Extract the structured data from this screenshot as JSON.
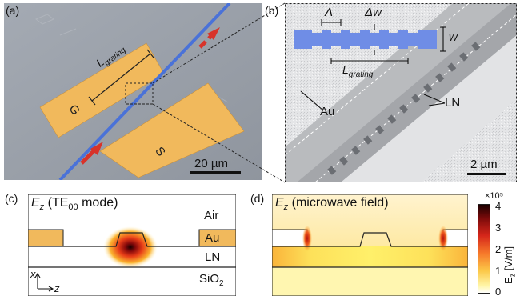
{
  "panels": {
    "a": {
      "label": "(a)",
      "grating_label": "L",
      "grating_sub": "grating",
      "electrode_g": "G",
      "electrode_s": "S",
      "scale_bar": "20 µm"
    },
    "b": {
      "label": "(b)",
      "period_label": "Λ",
      "delta_w_label": "Δw",
      "width_label": "w",
      "grating_label": "L",
      "grating_sub": "grating",
      "au_label": "Au",
      "ln_label": "LN",
      "scale_bar": "2 µm"
    },
    "c": {
      "label": "(c)",
      "title_main": "E",
      "title_sub": "z",
      "title_rest": " (TE",
      "title_mode_sub": "00",
      "title_end": " mode)",
      "air": "Air",
      "au": "Au",
      "ln": "LN",
      "sio2_main": "SiO",
      "sio2_sub": "2",
      "axis_x": "x",
      "axis_z": "z"
    },
    "d": {
      "label": "(d)",
      "title_main": "E",
      "title_sub": "z",
      "title_rest": " (microwave field)",
      "colorbar_exp": "×10⁵",
      "colorbar_label": "E",
      "colorbar_label_sub": "z",
      "colorbar_unit": " [V/m]",
      "colorbar_ticks": [
        "4",
        "3",
        "2",
        "1",
        "0"
      ]
    }
  },
  "colors": {
    "gold": "#f1b95c",
    "waveguide": "#4a72d8",
    "arrow": "#d8332a"
  }
}
